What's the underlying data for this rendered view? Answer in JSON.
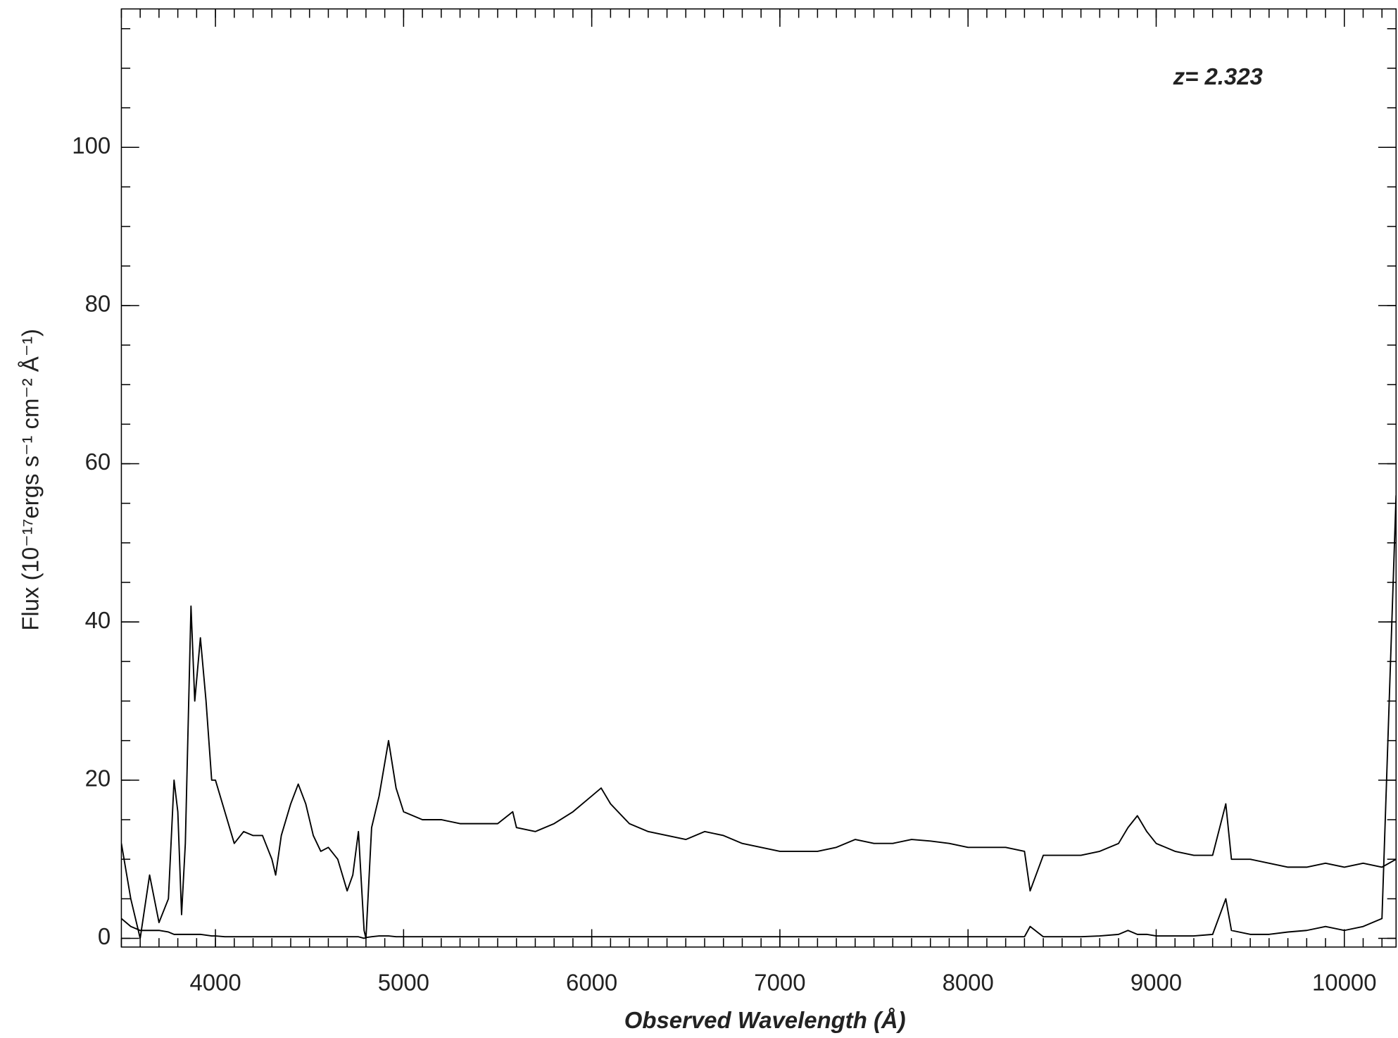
{
  "chart_data": {
    "type": "line",
    "xlabel": "Observed Wavelength (Å)",
    "ylabel": "Flux (10⁻¹⁷ergs s⁻¹ cm⁻² Å⁻¹)",
    "annotation": "z= 2.323",
    "x": [
      3500,
      3550,
      3600,
      3650,
      3700,
      3750,
      3780,
      3800,
      3820,
      3840,
      3870,
      3890,
      3920,
      3950,
      3980,
      4000,
      4050,
      4100,
      4150,
      4200,
      4250,
      4300,
      4320,
      4350,
      4400,
      4440,
      4480,
      4520,
      4560,
      4600,
      4650,
      4700,
      4730,
      4760,
      4790,
      4800,
      4830,
      4870,
      4920,
      4960,
      5000,
      5100,
      5200,
      5300,
      5400,
      5500,
      5580,
      5600,
      5700,
      5800,
      5900,
      6000,
      6050,
      6100,
      6200,
      6300,
      6400,
      6500,
      6600,
      6700,
      6800,
      6900,
      7000,
      7100,
      7200,
      7300,
      7400,
      7500,
      7600,
      7700,
      7800,
      7900,
      8000,
      8100,
      8200,
      8300,
      8330,
      8400,
      8500,
      8600,
      8700,
      8800,
      8850,
      8900,
      8950,
      9000,
      9100,
      9200,
      9300,
      9370,
      9400,
      9500,
      9600,
      9700,
      9800,
      9900,
      10000,
      10100,
      10200,
      10275
    ],
    "series": [
      {
        "color": "#000000",
        "values": [
          12,
          5,
          0,
          8,
          2,
          5,
          20,
          16,
          3,
          12,
          42,
          30,
          38,
          30,
          20,
          20,
          16,
          12,
          13.5,
          13,
          13,
          10,
          8,
          13,
          17,
          19.5,
          17,
          13,
          11,
          11.5,
          10,
          6,
          8,
          13.5,
          1,
          0,
          14,
          18,
          25,
          19,
          16,
          15,
          15,
          14.5,
          14.5,
          14.5,
          16,
          14,
          13.5,
          14.5,
          16,
          18,
          19,
          17,
          14.5,
          13.5,
          13,
          12.5,
          13.5,
          13,
          12,
          11.5,
          11,
          11,
          11,
          11.5,
          12.5,
          12,
          12,
          12.5,
          12.3,
          12,
          11.5,
          11.5,
          11.5,
          11,
          6,
          10.5,
          10.5,
          10.5,
          11,
          12,
          14,
          15.5,
          13.5,
          12,
          11,
          10.5,
          10.5,
          17,
          10,
          10,
          9.5,
          9,
          9,
          9.5,
          9,
          9.5,
          9,
          10
        ]
      },
      {
        "color": "#000000",
        "values": [
          2.5,
          1.5,
          1,
          1,
          1,
          0.8,
          0.5,
          0.5,
          0.5,
          0.5,
          0.5,
          0.5,
          0.5,
          0.4,
          0.3,
          0.3,
          0.2,
          0.2,
          0.2,
          0.2,
          0.2,
          0.2,
          0.2,
          0.2,
          0.2,
          0.2,
          0.2,
          0.2,
          0.2,
          0.2,
          0.2,
          0.2,
          0.2,
          0.2,
          0,
          0.1,
          0.2,
          0.3,
          0.3,
          0.2,
          0.2,
          0.2,
          0.2,
          0.2,
          0.2,
          0.2,
          0.2,
          0.2,
          0.2,
          0.2,
          0.2,
          0.2,
          0.2,
          0.2,
          0.2,
          0.2,
          0.2,
          0.2,
          0.2,
          0.2,
          0.2,
          0.2,
          0.2,
          0.2,
          0.2,
          0.2,
          0.2,
          0.2,
          0.2,
          0.2,
          0.2,
          0.2,
          0.2,
          0.2,
          0.2,
          0.2,
          1.5,
          0.2,
          0.2,
          0.2,
          0.3,
          0.5,
          1,
          0.5,
          0.5,
          0.3,
          0.3,
          0.3,
          0.5,
          5,
          1,
          0.5,
          0.5,
          0.8,
          1,
          1.5,
          1,
          1.5,
          2.5,
          56
        ]
      }
    ],
    "xlim": [
      3500,
      10275
    ],
    "ylim": [
      -1.1,
      117.5
    ],
    "xticks": [
      4000,
      5000,
      6000,
      7000,
      8000,
      9000,
      10000
    ],
    "yticks": [
      0,
      20,
      40,
      60,
      80,
      100
    ],
    "xminor": 100,
    "yminor": 5
  }
}
